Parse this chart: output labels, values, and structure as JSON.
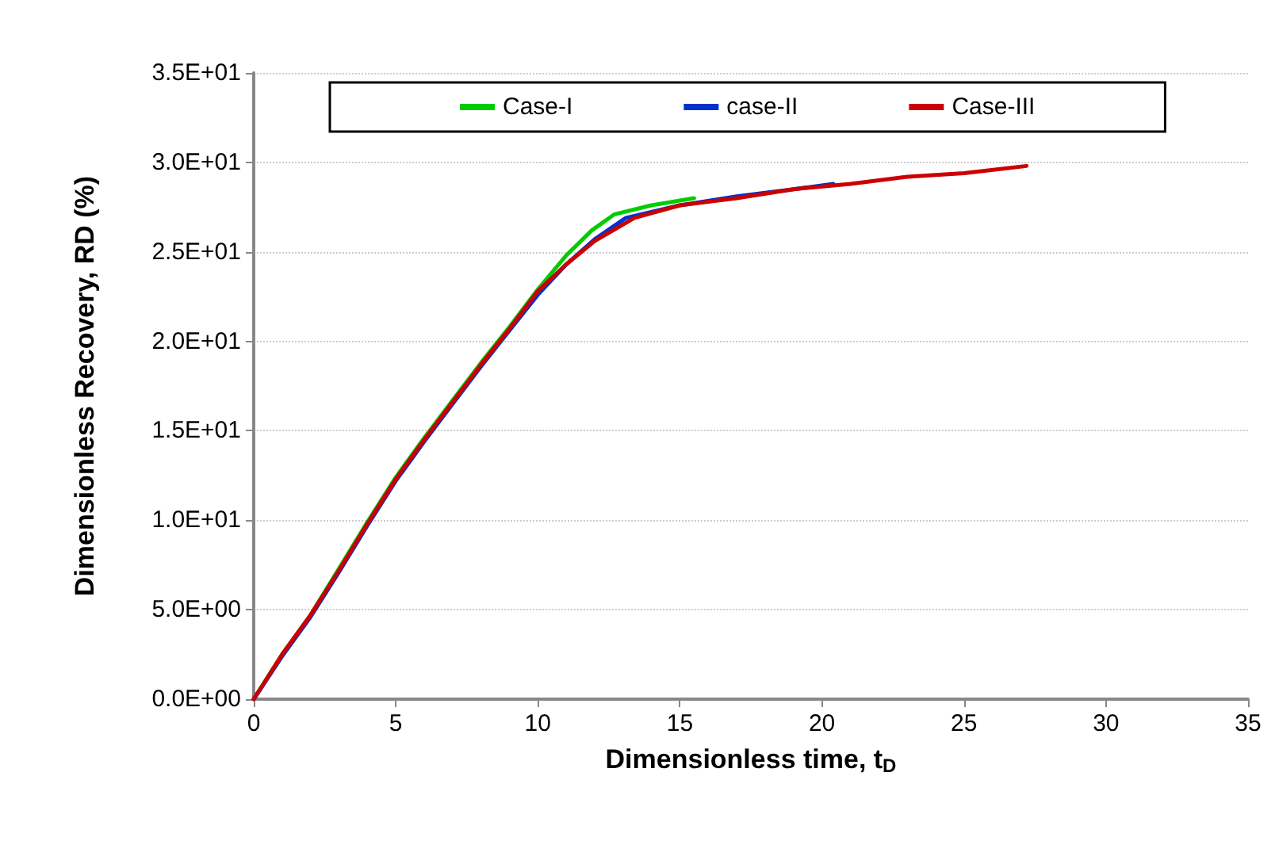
{
  "chart_data": {
    "type": "line",
    "xlabel": "Dimensionless time, t$_{D}$",
    "ylabel": "Dimensionless Recovery, RD (%)",
    "xlim": [
      0,
      35
    ],
    "xticks": [
      0,
      5,
      10,
      15,
      20,
      25,
      30,
      35
    ],
    "ylim": [
      0,
      35
    ],
    "yticks": [
      {
        "value": 0,
        "label": "0.0E+00"
      },
      {
        "value": 5,
        "label": "5.0E+00"
      },
      {
        "value": 10,
        "label": "1.0E+01"
      },
      {
        "value": 15,
        "label": "1.5E+01"
      },
      {
        "value": 20,
        "label": "2.0E+01"
      },
      {
        "value": 25,
        "label": "2.5E+01"
      },
      {
        "value": 30,
        "label": "3.0E+01"
      },
      {
        "value": 35,
        "label": "3.5E+01"
      }
    ],
    "grid": "y",
    "legend": "top",
    "marker": "none",
    "line_style": "solid",
    "series": [
      {
        "name": "Case-I",
        "color": "#00cc00",
        "x": [
          0,
          1,
          2,
          3,
          4,
          5,
          6,
          7,
          8,
          9,
          10,
          11,
          11.9,
          12.7,
          14,
          15.5
        ],
        "values": [
          0,
          2.5,
          4.7,
          7.3,
          9.9,
          12.4,
          14.6,
          16.7,
          18.8,
          20.8,
          22.9,
          24.8,
          26.2,
          27.1,
          27.6,
          28.0
        ]
      },
      {
        "name": "case-II",
        "color": "#0033cc",
        "x": [
          0,
          1,
          2,
          3,
          4,
          5,
          6,
          7,
          8,
          9,
          10,
          11,
          12,
          13.1,
          15,
          17,
          19,
          20.4
        ],
        "values": [
          0,
          2.4,
          4.6,
          7.1,
          9.7,
          12.2,
          14.4,
          16.5,
          18.6,
          20.6,
          22.6,
          24.3,
          25.7,
          26.9,
          27.6,
          28.1,
          28.5,
          28.8
        ]
      },
      {
        "name": "Case-III",
        "color": "#cc0000",
        "x": [
          0,
          1,
          2,
          3,
          4,
          5,
          6,
          7,
          8,
          9,
          10,
          11,
          12,
          13.4,
          15,
          17,
          19,
          21,
          23,
          25,
          27.2
        ],
        "values": [
          0,
          2.5,
          4.7,
          7.2,
          9.8,
          12.3,
          14.5,
          16.6,
          18.7,
          20.7,
          22.8,
          24.3,
          25.6,
          26.9,
          27.6,
          28.0,
          28.5,
          28.8,
          29.2,
          29.4,
          29.8
        ]
      }
    ]
  }
}
